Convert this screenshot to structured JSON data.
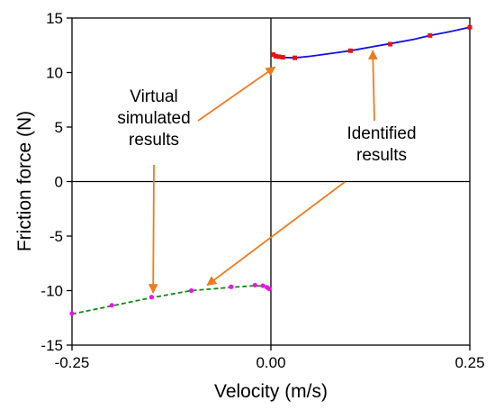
{
  "chart_data": {
    "type": "line",
    "xlabel": "Velocity (m/s)",
    "ylabel": "Friction force (N)",
    "xlim": [
      -0.25,
      0.25
    ],
    "ylim": [
      -15,
      15
    ],
    "x_ticks": [
      "-0.25",
      "0.00",
      "0.25"
    ],
    "y_ticks": [
      "15",
      "10",
      "5",
      "0",
      "-5",
      "-10",
      "-15"
    ],
    "grid": false,
    "series": [
      {
        "role": "curve",
        "color": "#1010e0",
        "line_style": "solid",
        "x": [
          0.005,
          0.01,
          0.02,
          0.03,
          0.05,
          0.08,
          0.1,
          0.13,
          0.15,
          0.18,
          0.2,
          0.225,
          0.25
        ],
        "y": [
          11.6,
          11.45,
          11.37,
          11.35,
          11.5,
          11.8,
          12.0,
          12.4,
          12.65,
          13.05,
          13.4,
          13.75,
          14.15
        ]
      },
      {
        "role": "points",
        "color": "#ee1111",
        "marker": "square",
        "x": [
          0.003,
          0.006,
          0.01,
          0.015,
          0.03,
          0.1,
          0.15,
          0.2,
          0.25
        ],
        "y": [
          11.65,
          11.5,
          11.45,
          11.4,
          11.35,
          12.0,
          12.6,
          13.4,
          14.15
        ]
      },
      {
        "role": "curve",
        "color": "#118811",
        "line_style": "dashed",
        "x": [
          -0.25,
          -0.2,
          -0.15,
          -0.1,
          -0.05,
          -0.02,
          -0.01,
          -0.003
        ],
        "y": [
          -12.15,
          -11.4,
          -10.65,
          -10.0,
          -9.7,
          -9.55,
          -9.6,
          -9.75
        ]
      },
      {
        "role": "points",
        "color": "#ee11ee",
        "marker": "circle",
        "x": [
          -0.25,
          -0.2,
          -0.15,
          -0.1,
          -0.05,
          -0.02,
          -0.01,
          -0.005,
          -0.002
        ],
        "y": [
          -12.1,
          -11.35,
          -10.6,
          -10.0,
          -9.65,
          -9.5,
          -9.55,
          -9.7,
          -9.85
        ]
      }
    ],
    "annotations": [
      {
        "lines": [
          "Virtual",
          "simulated",
          "results"
        ],
        "arrow_color": "#f07a1e",
        "targets": [
          {
            "x": 0.005,
            "y": 10.5
          },
          {
            "x": -0.148,
            "y": -10.2
          }
        ]
      },
      {
        "lines": [
          "Identified",
          "results"
        ],
        "arrow_color": "#f07a1e",
        "targets": [
          {
            "x": 0.128,
            "y": 12.0
          },
          {
            "x": -0.08,
            "y": -9.5
          }
        ]
      }
    ]
  }
}
